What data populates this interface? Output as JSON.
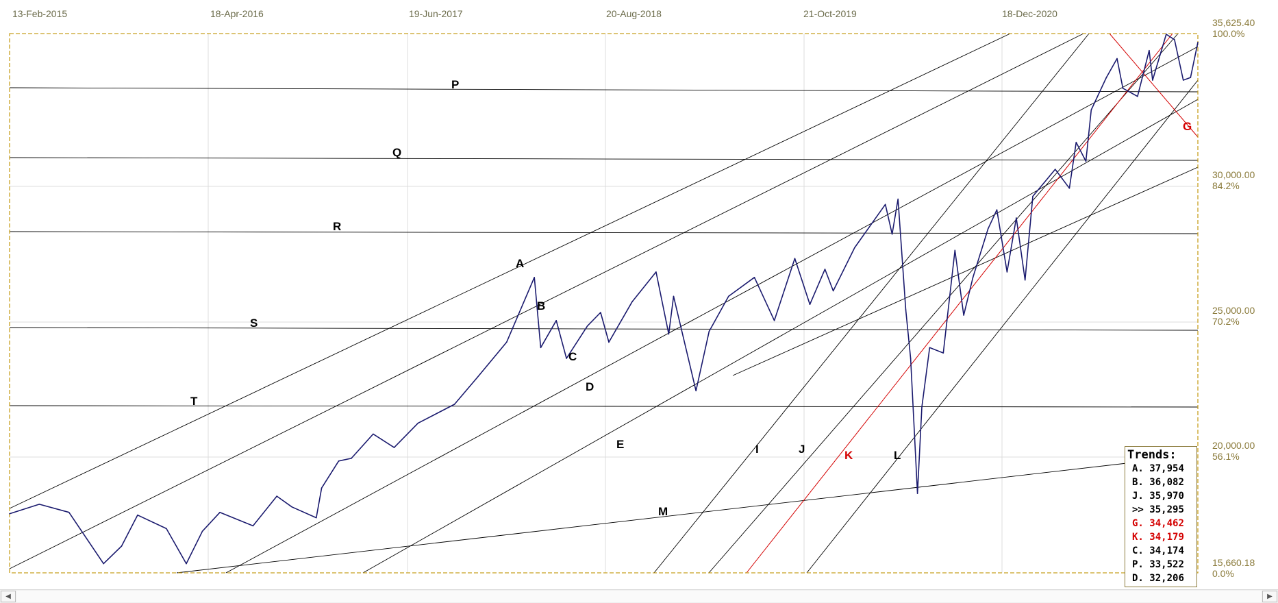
{
  "chart_data": {
    "type": "line",
    "x_ticks": [
      "13-Feb-2015",
      "18-Apr-2016",
      "19-Jun-2017",
      "20-Aug-2018",
      "21-Oct-2019",
      "18-Dec-2020"
    ],
    "y_ticks": [
      {
        "value": "35,625.40",
        "pct": "100.0%"
      },
      {
        "value": "30,000.00",
        "pct": "84.2%"
      },
      {
        "value": "25,000.00",
        "pct": "70.2%"
      },
      {
        "value": "20,000.00",
        "pct": "56.1%"
      },
      {
        "value": "15,660.18",
        "pct": "0.0%"
      }
    ],
    "ylim": [
      15660.18,
      35625.4
    ],
    "xlim": [
      "2015-02-13",
      "2021-10-20"
    ],
    "series_color": "#1a1a6e",
    "price_series": {
      "x": [
        "2015-02-13",
        "2015-04-15",
        "2015-06-15",
        "2015-08-25",
        "2015-10-01",
        "2015-11-03",
        "2016-01-01",
        "2016-02-11",
        "2016-03-15",
        "2016-04-20",
        "2016-06-27",
        "2016-08-15",
        "2016-09-15",
        "2016-11-04",
        "2016-11-15",
        "2016-12-20",
        "2017-01-15",
        "2017-03-01",
        "2017-04-13",
        "2017-06-01",
        "2017-08-15",
        "2017-10-01",
        "2017-11-30",
        "2018-01-26",
        "2018-02-08",
        "2018-03-12",
        "2018-04-02",
        "2018-05-15",
        "2018-06-11",
        "2018-06-28",
        "2018-08-15",
        "2018-10-03",
        "2018-10-29",
        "2018-11-08",
        "2018-12-24",
        "2019-01-20",
        "2019-03-01",
        "2019-04-23",
        "2019-06-03",
        "2019-07-15",
        "2019-08-15",
        "2019-09-15",
        "2019-10-02",
        "2019-11-15",
        "2020-01-17",
        "2020-01-31",
        "2020-02-12",
        "2020-02-28",
        "2020-03-09",
        "2020-03-23",
        "2020-04-01",
        "2020-04-17",
        "2020-05-15",
        "2020-06-08",
        "2020-06-26",
        "2020-07-15",
        "2020-08-15",
        "2020-09-02",
        "2020-09-23",
        "2020-10-12",
        "2020-10-30",
        "2020-11-15",
        "2020-12-31",
        "2021-01-29",
        "2021-02-12",
        "2021-03-04",
        "2021-03-15",
        "2021-04-15",
        "2021-05-07",
        "2021-05-19",
        "2021-06-18",
        "2021-07-12",
        "2021-07-19",
        "2021-08-16",
        "2021-09-02",
        "2021-09-20",
        "2021-10-05",
        "2021-10-20"
      ],
      "y": [
        17850,
        18200,
        17900,
        16000,
        16650,
        17800,
        17300,
        16000,
        17200,
        17900,
        17400,
        18500,
        18100,
        17700,
        18800,
        19800,
        19900,
        20800,
        20300,
        21200,
        21900,
        22900,
        24200,
        26600,
        24000,
        25000,
        23600,
        24800,
        25300,
        24200,
        25700,
        26800,
        24500,
        25900,
        22400,
        24600,
        25900,
        26600,
        25000,
        27300,
        25600,
        26900,
        26100,
        27700,
        29300,
        28200,
        29500,
        25400,
        23600,
        18600,
        21800,
        24000,
        23800,
        27600,
        25200,
        26600,
        28400,
        29100,
        26800,
        28800,
        26500,
        29600,
        30600,
        29900,
        31600,
        30900,
        32800,
        34000,
        34700,
        33600,
        33300,
        35000,
        33900,
        35600,
        35400,
        33900,
        34000,
        35300
      ]
    },
    "trend_labels": [
      "A",
      "B",
      "C",
      "D",
      "E",
      "G",
      "I",
      "J",
      "K",
      "L",
      "M",
      "P",
      "Q",
      "R",
      "S",
      "T"
    ],
    "trends_title": "Trends:",
    "trends": [
      {
        "label": "A.",
        "value": "37,954",
        "color": "#000000"
      },
      {
        "label": "B.",
        "value": "36,082",
        "color": "#000000"
      },
      {
        "label": "J.",
        "value": "35,970",
        "color": "#000000"
      },
      {
        "label": ">>",
        "value": "35,295",
        "color": "#000000"
      },
      {
        "label": "G.",
        "value": "34,462",
        "color": "#d40000"
      },
      {
        "label": "K.",
        "value": "34,179",
        "color": "#d40000"
      },
      {
        "label": "C.",
        "value": "34,174",
        "color": "#000000"
      },
      {
        "label": "P.",
        "value": "33,522",
        "color": "#000000"
      },
      {
        "label": "D.",
        "value": "32,206",
        "color": "#000000"
      }
    ],
    "grid": true,
    "legend_position": "bottom-right"
  },
  "colors": {
    "frame": "#c8a020",
    "red_trend": "#d40000",
    "trendline": "#000000"
  },
  "scrollbar": {
    "left_arrow": "◀",
    "right_arrow": "▶"
  }
}
